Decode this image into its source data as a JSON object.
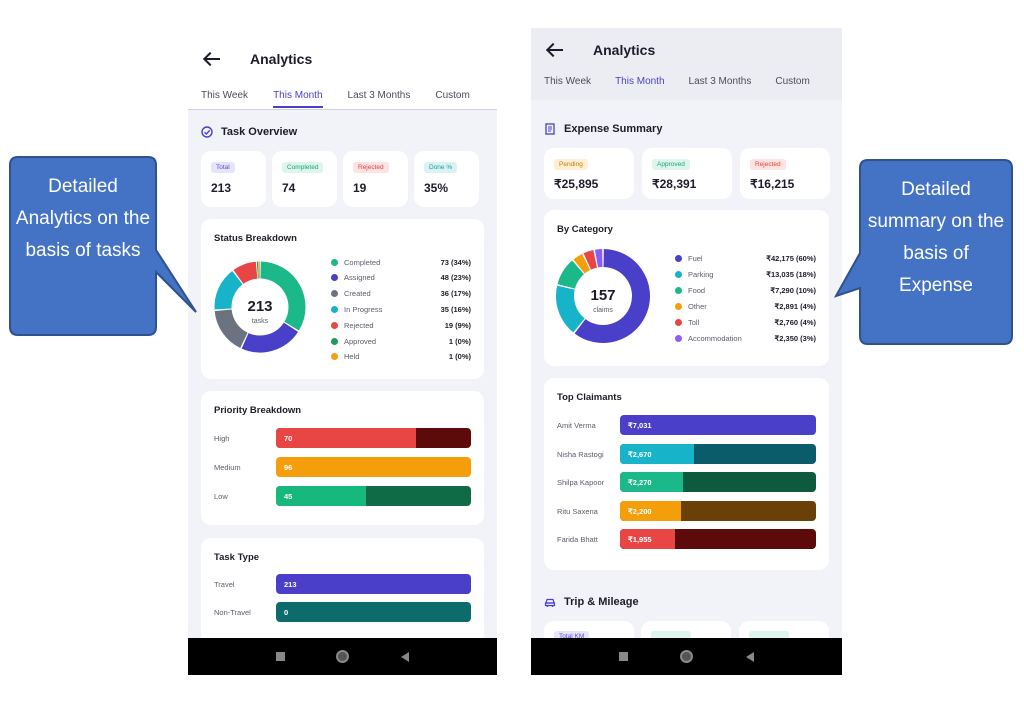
{
  "left": {
    "app_title": "Analytics",
    "tabs": [
      "This Week",
      "This Month",
      "Last 3 Months",
      "Custom"
    ],
    "active_tab": "This Month",
    "task_overview": {
      "title": "Task Overview",
      "stats": [
        {
          "label": "Total",
          "value": "213",
          "color": "#5b4fd6",
          "bg": "#e6e4fb"
        },
        {
          "label": "Completed",
          "value": "74",
          "color": "#17a57a",
          "bg": "#ddf5ec"
        },
        {
          "label": "Rejected",
          "value": "19",
          "color": "#e0443e",
          "bg": "#fde3e2"
        },
        {
          "label": "Done %",
          "value": "35%",
          "color": "#14a0a0",
          "bg": "#daf3f2"
        }
      ]
    },
    "status_breakdown": {
      "title": "Status Breakdown",
      "center_value": "213",
      "center_label": "tasks",
      "legend": [
        {
          "label": "Completed",
          "value": "73 (34%)",
          "color": "#1bb88a"
        },
        {
          "label": "Assigned",
          "value": "48 (23%)",
          "color": "#4a3fc8"
        },
        {
          "label": "Created",
          "value": "36 (17%)",
          "color": "#6b7280"
        },
        {
          "label": "In Progress",
          "value": "35 (16%)",
          "color": "#17b3c8"
        },
        {
          "label": "Rejected",
          "value": "19 (9%)",
          "color": "#e84545"
        },
        {
          "label": "Approved",
          "value": "1 (0%)",
          "color": "#1f9a5c"
        },
        {
          "label": "Held",
          "value": "1 (0%)",
          "color": "#f59e0b"
        }
      ]
    },
    "priority_breakdown": {
      "title": "Priority Breakdown",
      "bars": [
        {
          "label": "High",
          "value": "70",
          "fill": 0.72,
          "color": "#e84545",
          "track": "#5c0a0a"
        },
        {
          "label": "Medium",
          "value": "96",
          "fill": 1.0,
          "color": "#f59e0b",
          "track": "#7a4a05"
        },
        {
          "label": "Low",
          "value": "45",
          "fill": 0.46,
          "color": "#17b87e",
          "track": "#0f6a45"
        }
      ]
    },
    "task_type": {
      "title": "Task Type",
      "bars": [
        {
          "label": "Travel",
          "value": "213",
          "fill": 1.0,
          "color": "#4a3fc8",
          "track": "#2b2478"
        },
        {
          "label": "Non-Travel",
          "value": "0",
          "fill": 0,
          "color": "#0d6b6b",
          "track": "#0d6b6b"
        }
      ]
    }
  },
  "right": {
    "app_title": "Analytics",
    "tabs": [
      "This Week",
      "This Month",
      "Last 3 Months",
      "Custom"
    ],
    "active_tab": "This Month",
    "expense_summary": {
      "title": "Expense Summary",
      "stats": [
        {
          "label": "Pending",
          "value": "₹25,895",
          "color": "#c27a06",
          "bg": "#fdf0d5"
        },
        {
          "label": "Approved",
          "value": "₹28,391",
          "color": "#17a57a",
          "bg": "#ddf5ec"
        },
        {
          "label": "Rejected",
          "value": "₹16,215",
          "color": "#e0443e",
          "bg": "#fde3e2"
        }
      ]
    },
    "by_category": {
      "title": "By Category",
      "center_value": "157",
      "center_label": "claims",
      "legend": [
        {
          "label": "Fuel",
          "value": "₹42,175 (60%)",
          "color": "#4a3fc8"
        },
        {
          "label": "Parking",
          "value": "₹13,035 (18%)",
          "color": "#17b3c8"
        },
        {
          "label": "Food",
          "value": "₹7,290 (10%)",
          "color": "#1bb88a"
        },
        {
          "label": "Other",
          "value": "₹2,891 (4%)",
          "color": "#f59e0b"
        },
        {
          "label": "Toll",
          "value": "₹2,760 (4%)",
          "color": "#e84545"
        },
        {
          "label": "Accommodation",
          "value": "₹2,350 (3%)",
          "color": "#8b5cf6"
        }
      ]
    },
    "top_claimants": {
      "title": "Top Claimants",
      "bars": [
        {
          "label": "Amit Verma",
          "value": "₹7,031",
          "fill": 1.0,
          "color": "#4a3fc8",
          "track": "#4a3fc8"
        },
        {
          "label": "Nisha Rastogi",
          "value": "₹2,670",
          "fill": 0.38,
          "color": "#17b3c8",
          "track": "#0b5c6b"
        },
        {
          "label": "Shilpa Kapoor",
          "value": "₹2,270",
          "fill": 0.32,
          "color": "#1bb88a",
          "track": "#0d5a3f"
        },
        {
          "label": "Ritu Saxena",
          "value": "₹2,200",
          "fill": 0.31,
          "color": "#f59e0b",
          "track": "#6b4008"
        },
        {
          "label": "Farida Bhatt",
          "value": "₹1,955",
          "fill": 0.28,
          "color": "#e84545",
          "track": "#5c0a0a"
        }
      ]
    },
    "trip_mileage": {
      "title": "Trip & Mileage",
      "first_label": "Total KM"
    }
  },
  "callouts": {
    "left": "Detailed Analytics on the basis of tasks",
    "right": "Detailed summary on the basis of Expense"
  }
}
